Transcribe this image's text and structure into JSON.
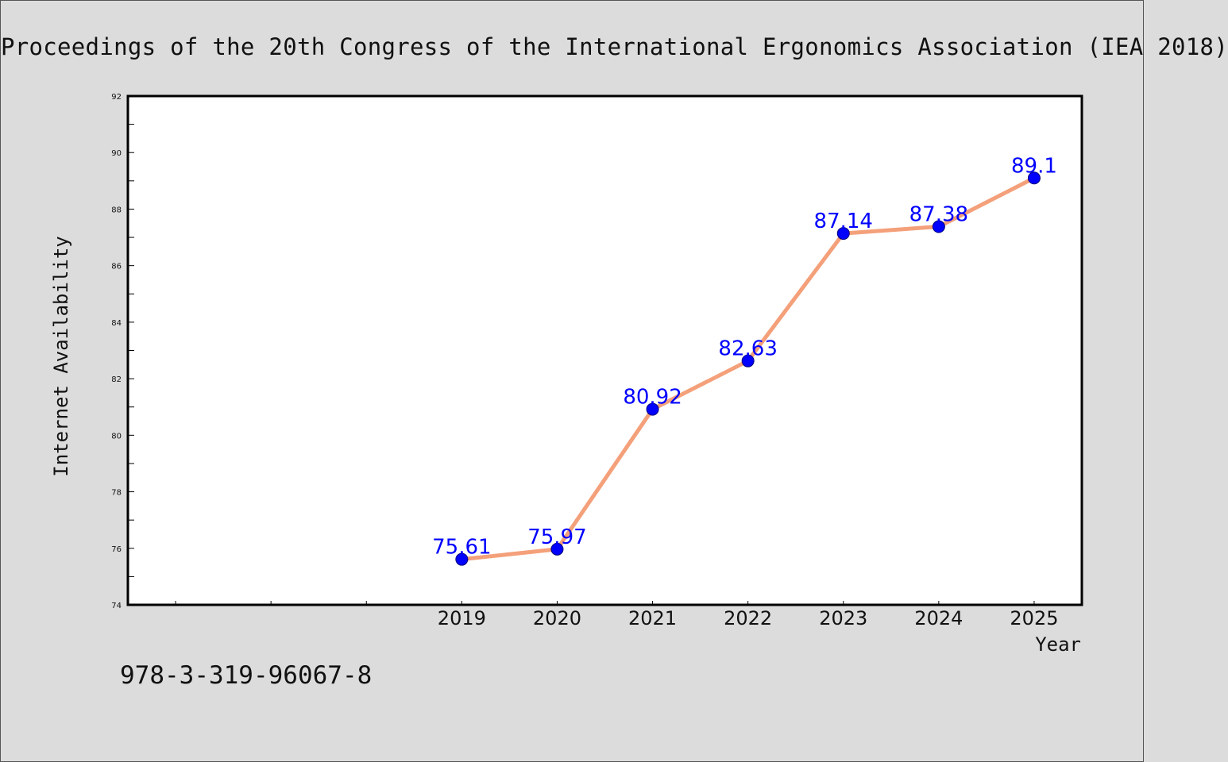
{
  "header": {
    "title": "Proceedings of the 20th Congress of the International Ergonomics Association (IEA 2018)"
  },
  "footer": {
    "isbn": "978-3-319-96067-8"
  },
  "colors": {
    "background": "#dcdcdc",
    "plot_background": "#ffffff",
    "line": "#f4a07a",
    "marker": "#0000ff",
    "data_label": "#0000ff"
  },
  "chart_data": {
    "type": "line",
    "title": "Proceedings of the 20th Congress of the International Ergonomics Association (IEA 2018)",
    "xlabel": "Year",
    "ylabel": "Internet Availability",
    "categories": [
      "2019",
      "2020",
      "2021",
      "2022",
      "2023",
      "2024",
      "2025"
    ],
    "values": [
      75.61,
      75.97,
      80.92,
      82.63,
      87.14,
      87.38,
      89.1
    ],
    "data_labels": [
      "75.61",
      "75.97",
      "80.92",
      "82.63",
      "87.14",
      "87.38",
      "89.1"
    ],
    "xlim": [
      2015.5,
      2025.5
    ],
    "ylim": [
      74,
      92
    ],
    "y_ticks": [
      "74",
      "76",
      "78",
      "80",
      "82",
      "84",
      "86",
      "88",
      "90",
      "92"
    ],
    "grid": false,
    "legend": "none"
  }
}
